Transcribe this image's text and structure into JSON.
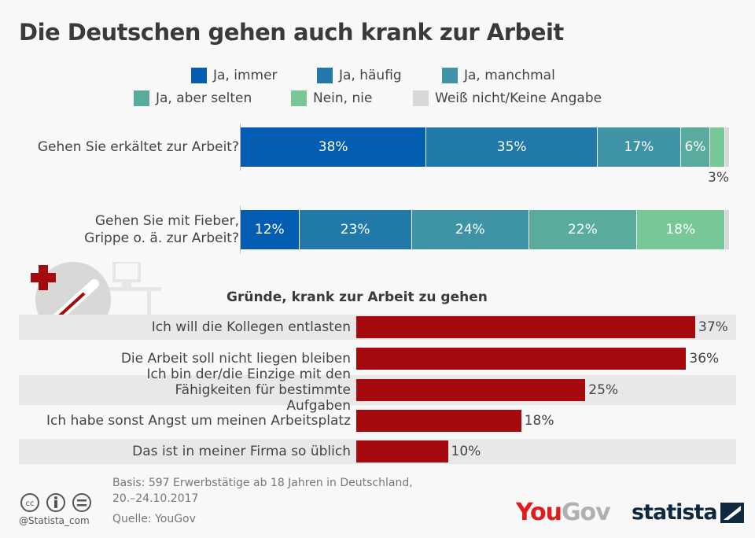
{
  "title": "Die Deutschen gehen auch krank zur Arbeit",
  "chart_data": [
    {
      "type": "bar",
      "stacked": true,
      "orientation": "horizontal",
      "categories": [
        "Gehen Sie erkältet zur Arbeit?",
        "Gehen Sie mit Fieber, Grippe o. ä. zur Arbeit?"
      ],
      "series": [
        {
          "name": "Ja, immer",
          "color": "#025db3",
          "values": [
            38,
            12
          ],
          "labels": [
            "38%",
            "12%"
          ]
        },
        {
          "name": "Ja, häufig",
          "color": "#2179aa",
          "values": [
            35,
            23
          ],
          "labels": [
            "35%",
            "23%"
          ]
        },
        {
          "name": "Ja, manchmal",
          "color": "#3e93a5",
          "values": [
            17,
            24
          ],
          "labels": [
            "17%",
            "24%"
          ]
        },
        {
          "name": "Ja, aber selten",
          "color": "#59ab9e",
          "values": [
            6,
            22
          ],
          "labels": [
            "6%",
            "22%"
          ]
        },
        {
          "name": "Nein, nie",
          "color": "#77c896",
          "values": [
            3,
            18
          ],
          "labels": [
            "3%",
            "18%"
          ]
        },
        {
          "name": "Weiß nicht/Keine Angabe",
          "color": "#d8d8d8",
          "values": [
            1,
            1
          ],
          "labels": [
            "",
            ""
          ]
        }
      ],
      "legend": "top"
    },
    {
      "type": "bar",
      "orientation": "horizontal",
      "title": "Gründe, krank zur Arbeit zu gehen",
      "color": "#a50a0e",
      "categories": [
        "Ich will die Kollegen entlasten",
        "Die Arbeit soll nicht liegen bleiben",
        "Ich bin der/die Einzige mit den Fähigkeiten für bestimmte Aufgaben",
        "Ich habe sonst Angst um meinen Arbeitsplatz",
        "Das ist in meiner Firma so üblich"
      ],
      "values": [
        37,
        36,
        25,
        18,
        10
      ],
      "labels": [
        "37%",
        "36%",
        "25%",
        "18%",
        "10%"
      ]
    }
  ],
  "footer": {
    "basis": "Basis: 597 Erwerbstätige ab 18 Jahren in Deutschland,",
    "date": "20.–24.10.2017",
    "source": "Quelle: YouGov",
    "handle": "@Statista_com",
    "logo_yougov": "YouGov",
    "logo_statista": "statista"
  }
}
